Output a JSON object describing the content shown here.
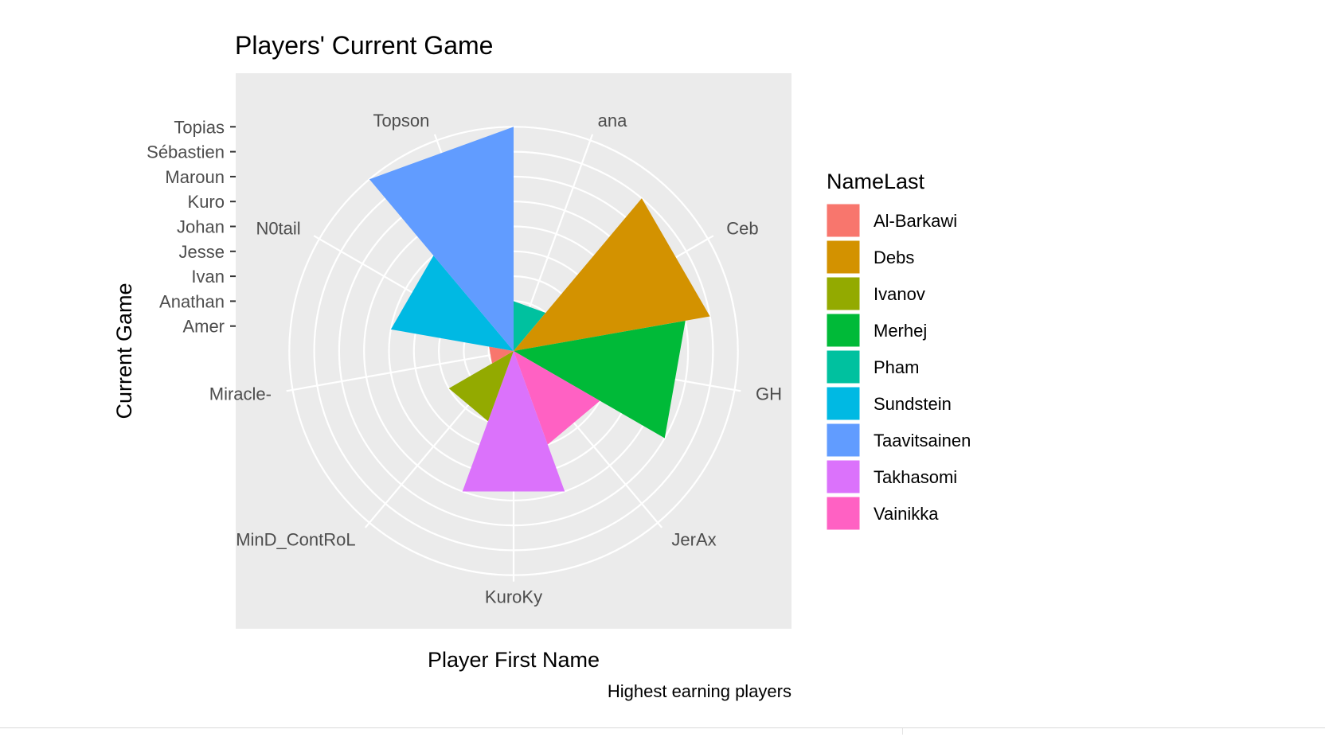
{
  "chart_data": {
    "type": "bar",
    "coordinates": "polar",
    "title": "Players' Current Game",
    "xlabel": "Player First Name",
    "ylabel": "Current Game",
    "caption": "Highest earning players",
    "categories": [
      "ana",
      "Ceb",
      "GH",
      "JerAx",
      "KuroKy",
      "MinD_ContRoL",
      "Miracle-",
      "N0tail",
      "Topson"
    ],
    "y_levels": [
      "Amer",
      "Anathan",
      "Ivan",
      "Jesse",
      "Johan",
      "Kuro",
      "Maroun",
      "Sébastien",
      "Topias"
    ],
    "values": [
      2,
      8,
      7,
      4,
      6,
      3,
      1,
      5,
      9
    ],
    "fill_group": [
      "Pham",
      "Debs",
      "Merhej",
      "Vainikka",
      "Takhasomi",
      "Ivanov",
      "Al-Barkawi",
      "Sundstein",
      "Taavitsainen"
    ],
    "legend": {
      "title": "NameLast",
      "position": "right",
      "entries": [
        {
          "label": "Al-Barkawi",
          "color": "#F8766D"
        },
        {
          "label": "Debs",
          "color": "#D39200"
        },
        {
          "label": "Ivanov",
          "color": "#93AA00"
        },
        {
          "label": "Merhej",
          "color": "#00BA38"
        },
        {
          "label": "Pham",
          "color": "#00C19F"
        },
        {
          "label": "Sundstein",
          "color": "#00B9E3"
        },
        {
          "label": "Taavitsainen",
          "color": "#619CFF"
        },
        {
          "label": "Takhasomi",
          "color": "#DB72FB"
        },
        {
          "label": "Vainikka",
          "color": "#FF61C3"
        }
      ]
    },
    "panel_background": "#EBEBEB",
    "grid": true
  }
}
